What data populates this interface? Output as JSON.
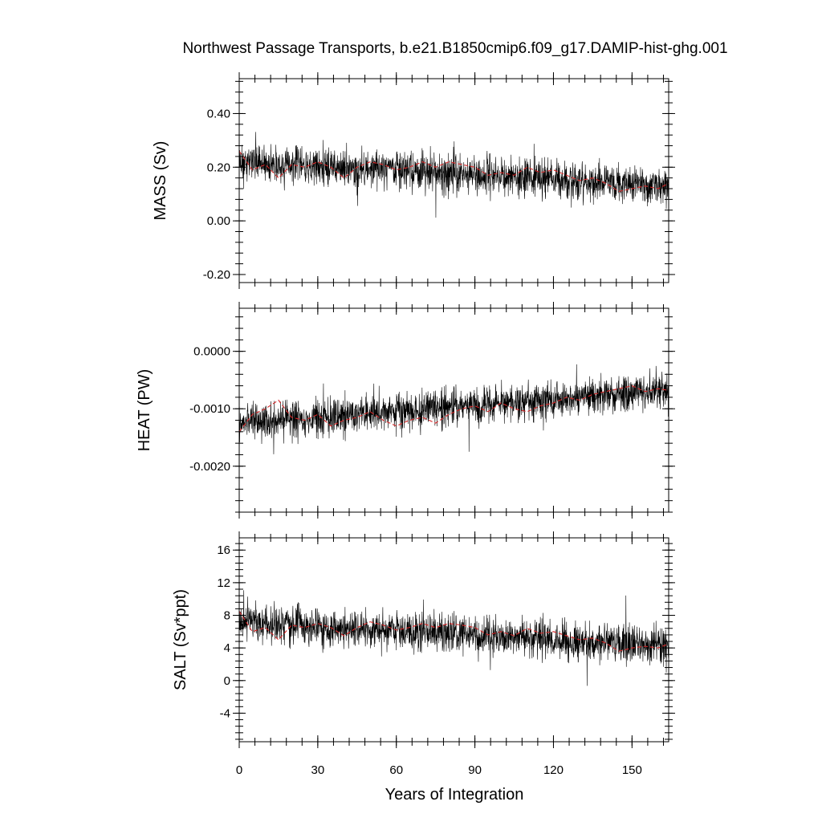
{
  "figure": {
    "title": "Northwest Passage Transports, b.e21.B1850cmip6.f09_g17.DAMIP-hist-ghg.001",
    "xlabel": "Years of Integration"
  },
  "chart_data": [
    {
      "type": "line",
      "panel": "mass",
      "ylabel": "MASS (Sv)",
      "xlim": [
        0,
        164
      ],
      "ylim": [
        -0.23,
        0.53
      ],
      "xticks": [
        0,
        30,
        60,
        90,
        120,
        150
      ],
      "xtick_labels": [
        "0",
        "30",
        "60",
        "90",
        "120",
        "150"
      ],
      "yticks": [
        -0.2,
        0.0,
        0.2,
        0.4
      ],
      "ytick_labels": [
        "-0.20",
        "0.00",
        "0.20",
        "0.40"
      ],
      "series": [
        {
          "kind": "monthly",
          "color": "#000000",
          "mean_start": 0.22,
          "mean_end": 0.13,
          "noise": 0.075
        },
        {
          "kind": "annual_mean",
          "color": "#d62728",
          "x": [
            0,
            5,
            10,
            15,
            20,
            25,
            30,
            35,
            40,
            45,
            50,
            55,
            60,
            65,
            70,
            75,
            80,
            85,
            90,
            95,
            100,
            105,
            110,
            115,
            120,
            125,
            130,
            135,
            140,
            145,
            150,
            155,
            160,
            164
          ],
          "values": [
            0.26,
            0.19,
            0.21,
            0.16,
            0.21,
            0.2,
            0.22,
            0.2,
            0.16,
            0.2,
            0.22,
            0.21,
            0.19,
            0.2,
            0.22,
            0.2,
            0.22,
            0.21,
            0.2,
            0.17,
            0.18,
            0.17,
            0.2,
            0.18,
            0.19,
            0.17,
            0.15,
            0.16,
            0.14,
            0.11,
            0.12,
            0.13,
            0.12,
            0.14
          ]
        }
      ]
    },
    {
      "type": "line",
      "panel": "heat",
      "ylabel": "HEAT (PW)",
      "xlim": [
        0,
        164
      ],
      "ylim": [
        -0.0028,
        0.00075
      ],
      "xticks": [
        0,
        30,
        60,
        90,
        120,
        150
      ],
      "xtick_labels": [
        "0",
        "30",
        "60",
        "90",
        "120",
        "150"
      ],
      "yticks": [
        -0.002,
        -0.001,
        0.0
      ],
      "ytick_labels": [
        "-0.0020",
        "-0.0010",
        "0.0000"
      ],
      "series": [
        {
          "kind": "monthly",
          "color": "#000000",
          "mean_start": -0.00125,
          "mean_end": -0.00068,
          "noise": 0.00033
        },
        {
          "kind": "annual_mean",
          "color": "#d62728",
          "x": [
            0,
            5,
            10,
            15,
            20,
            25,
            30,
            35,
            40,
            45,
            50,
            55,
            60,
            65,
            70,
            75,
            80,
            85,
            90,
            95,
            100,
            105,
            110,
            115,
            120,
            125,
            130,
            135,
            140,
            145,
            150,
            155,
            160,
            164
          ],
          "values": [
            -0.0014,
            -0.0011,
            -0.001,
            -0.00085,
            -0.00115,
            -0.0012,
            -0.0011,
            -0.0013,
            -0.0012,
            -0.00115,
            -0.00105,
            -0.0012,
            -0.0013,
            -0.0012,
            -0.00115,
            -0.00125,
            -0.0011,
            -0.001,
            -0.00095,
            -0.00105,
            -0.0009,
            -0.001,
            -0.00105,
            -0.00095,
            -0.0009,
            -0.0008,
            -0.00085,
            -0.00075,
            -0.0007,
            -0.00065,
            -0.0006,
            -0.0007,
            -0.00065,
            -0.00068
          ]
        }
      ]
    },
    {
      "type": "line",
      "panel": "salt",
      "ylabel": "SALT (Sv*ppt)",
      "xlim": [
        0,
        164
      ],
      "ylim": [
        -7.5,
        17.5
      ],
      "xticks": [
        0,
        30,
        60,
        90,
        120,
        150
      ],
      "xtick_labels": [
        "0",
        "30",
        "60",
        "90",
        "120",
        "150"
      ],
      "yticks": [
        -4,
        0,
        4,
        8,
        12,
        16
      ],
      "ytick_labels": [
        "-4",
        "0",
        "4",
        "8",
        "12",
        "16"
      ],
      "series": [
        {
          "kind": "monthly",
          "color": "#000000",
          "mean_start": 7.2,
          "mean_end": 4.2,
          "noise": 2.4
        },
        {
          "kind": "annual_mean",
          "color": "#d62728",
          "x": [
            0,
            5,
            10,
            15,
            20,
            25,
            30,
            35,
            40,
            45,
            50,
            55,
            60,
            65,
            70,
            75,
            80,
            85,
            90,
            95,
            100,
            105,
            110,
            115,
            120,
            125,
            130,
            135,
            140,
            145,
            150,
            155,
            160,
            164
          ],
          "values": [
            8.5,
            6.0,
            6.5,
            5.0,
            6.8,
            6.5,
            7.0,
            6.5,
            5.5,
            6.5,
            7.2,
            6.8,
            6.2,
            6.5,
            7.0,
            6.5,
            7.0,
            6.8,
            6.5,
            5.6,
            6.0,
            5.5,
            6.4,
            5.8,
            6.0,
            5.5,
            5.0,
            5.2,
            4.6,
            3.6,
            4.0,
            4.2,
            4.0,
            4.5
          ]
        }
      ]
    }
  ]
}
